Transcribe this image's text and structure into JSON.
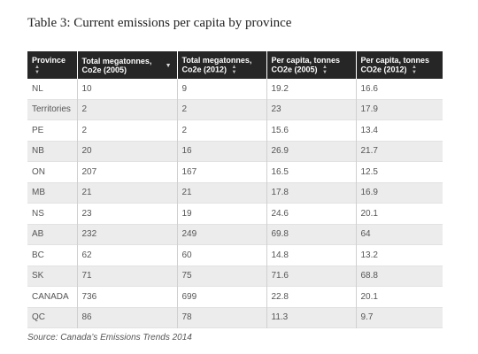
{
  "title": "Table 3: Current emissions per capita by province",
  "columns": [
    {
      "line1": "Province",
      "line2": ""
    },
    {
      "line1": "Total megatonnes,",
      "line2": "Co2e (2005)"
    },
    {
      "line1": "Total megatonnes,",
      "line2": "Co2e (2012)"
    },
    {
      "line1": "Per capita, tonnes",
      "line2": "CO2e (2005)"
    },
    {
      "line1": "Per capita, tonnes",
      "line2": "CO2e (2012)"
    }
  ],
  "rows": [
    [
      "NL",
      "10",
      "9",
      "19.2",
      "16.6"
    ],
    [
      "Territories",
      "2",
      "2",
      "23",
      "17.9"
    ],
    [
      "PE",
      "2",
      "2",
      "15.6",
      "13.4"
    ],
    [
      "NB",
      "20",
      "16",
      "26.9",
      "21.7"
    ],
    [
      "ON",
      "207",
      "167",
      "16.5",
      "12.5"
    ],
    [
      "MB",
      "21",
      "21",
      "17.8",
      "16.9"
    ],
    [
      "NS",
      "23",
      "19",
      "24.6",
      "20.1"
    ],
    [
      "AB",
      "232",
      "249",
      "69.8",
      "64"
    ],
    [
      "BC",
      "62",
      "60",
      "14.8",
      "13.2"
    ],
    [
      "SK",
      "71",
      "75",
      "71.6",
      "68.8"
    ],
    [
      "CANADA",
      "736",
      "699",
      "22.8",
      "20.1"
    ],
    [
      "QC",
      "86",
      "78",
      "11.3",
      "9.7"
    ]
  ],
  "sort_icons": {
    "default": "sort-both-icon",
    "active": "sort-desc-icon"
  },
  "source": "Source: Canada’s Emissions Trends 2014"
}
